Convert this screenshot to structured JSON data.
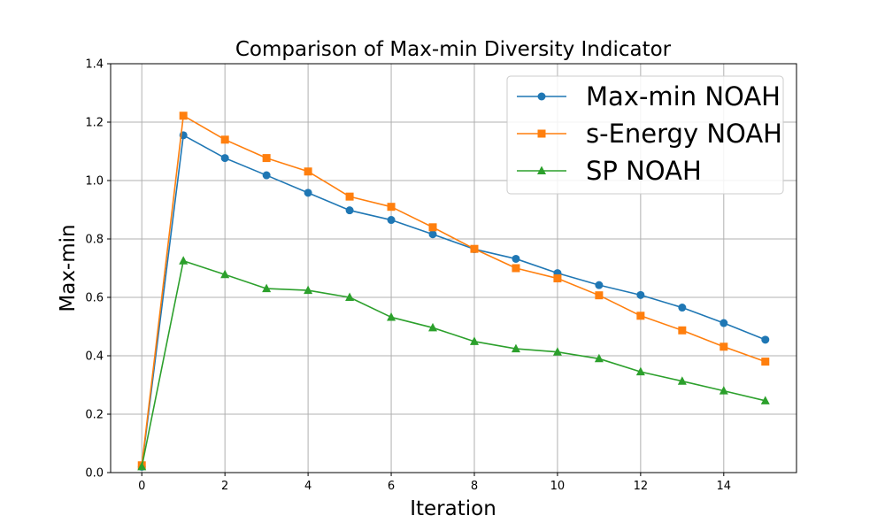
{
  "chart_data": {
    "type": "line",
    "title": "Comparison of Max-min Diversity Indicator",
    "xlabel": "Iteration",
    "ylabel": "Max-min",
    "xlim": [
      -0.75,
      15.75
    ],
    "ylim": [
      0,
      1.4
    ],
    "x_ticks": [
      0,
      2,
      4,
      6,
      8,
      10,
      12,
      14
    ],
    "x_tick_labels": [
      "0",
      "2",
      "4",
      "6",
      "8",
      "10",
      "12",
      "14"
    ],
    "y_ticks": [
      0,
      0.2,
      0.4,
      0.6,
      0.8,
      1.0,
      1.2,
      1.4
    ],
    "y_tick_labels": [
      "0.0",
      "0.2",
      "0.4",
      "0.6",
      "0.8",
      "1.0",
      "1.2",
      "1.4"
    ],
    "grid": true,
    "legend_position": "top-right",
    "x": [
      0,
      1,
      2,
      3,
      4,
      5,
      6,
      7,
      8,
      9,
      10,
      11,
      12,
      13,
      14,
      15
    ],
    "series": [
      {
        "name": "Max-min NOAH",
        "color": "#1f77b4",
        "marker": "circle",
        "values": [
          0.02,
          1.155,
          1.077,
          1.018,
          0.958,
          0.898,
          0.865,
          0.816,
          0.765,
          0.732,
          0.683,
          0.642,
          0.608,
          0.565,
          0.512,
          0.455
        ]
      },
      {
        "name": "s-Energy NOAH",
        "color": "#ff7f0e",
        "marker": "square",
        "values": [
          0.025,
          1.222,
          1.14,
          1.077,
          1.031,
          0.945,
          0.91,
          0.84,
          0.766,
          0.7,
          0.665,
          0.607,
          0.537,
          0.487,
          0.431,
          0.38
        ]
      },
      {
        "name": "SP NOAH",
        "color": "#2ca02c",
        "marker": "triangle",
        "values": [
          0.02,
          0.725,
          0.678,
          0.63,
          0.624,
          0.6,
          0.532,
          0.496,
          0.449,
          0.424,
          0.413,
          0.39,
          0.345,
          0.313,
          0.28,
          0.246
        ]
      }
    ]
  }
}
